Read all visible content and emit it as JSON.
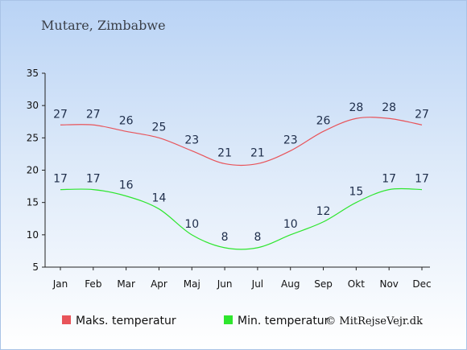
{
  "chart_data": {
    "type": "line",
    "title": "Mutare, Zimbabwe",
    "categories": [
      "Jan",
      "Feb",
      "Mar",
      "Apr",
      "Maj",
      "Jun",
      "Jul",
      "Aug",
      "Sep",
      "Okt",
      "Nov",
      "Dec"
    ],
    "series": [
      {
        "name": "Maks. temperatur",
        "color": "#e8545a",
        "values": [
          27,
          27,
          26,
          25,
          23,
          21,
          21,
          23,
          26,
          28,
          28,
          27
        ]
      },
      {
        "name": "Min. temperatur",
        "color": "#2ee62e",
        "values": [
          17,
          17,
          16,
          14,
          10,
          8,
          8,
          10,
          12,
          15,
          17,
          17
        ]
      }
    ],
    "ylim": [
      5,
      35
    ],
    "yticks": [
      5,
      10,
      15,
      20,
      25,
      30,
      35
    ],
    "xlabel": "",
    "ylabel": "",
    "grid": false,
    "legend_position": "bottom-left"
  },
  "copyright": "© MitRejseVejr.dk"
}
